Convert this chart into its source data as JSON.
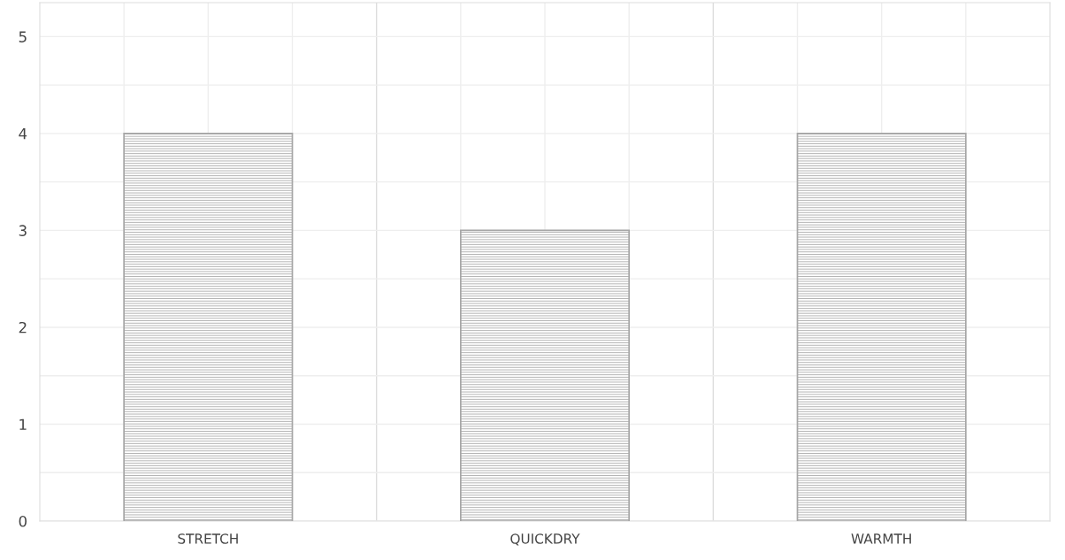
{
  "chart_data": {
    "type": "bar",
    "categories": [
      "STRETCH",
      "QUICKDRY",
      "WARMTH"
    ],
    "values": [
      4,
      3,
      4
    ],
    "color": "#a6a6a6",
    "ylim": [
      0,
      5.35
    ],
    "yticks": [
      0,
      {
        "value": 0.5,
        "label": null
      },
      1,
      {
        "value": 1.5,
        "label": null
      },
      2,
      {
        "value": 2.5,
        "label": null
      },
      3,
      {
        "value": 3.5,
        "label": null
      },
      4,
      {
        "value": 4.5,
        "label": null
      },
      5
    ],
    "grid": true
  }
}
